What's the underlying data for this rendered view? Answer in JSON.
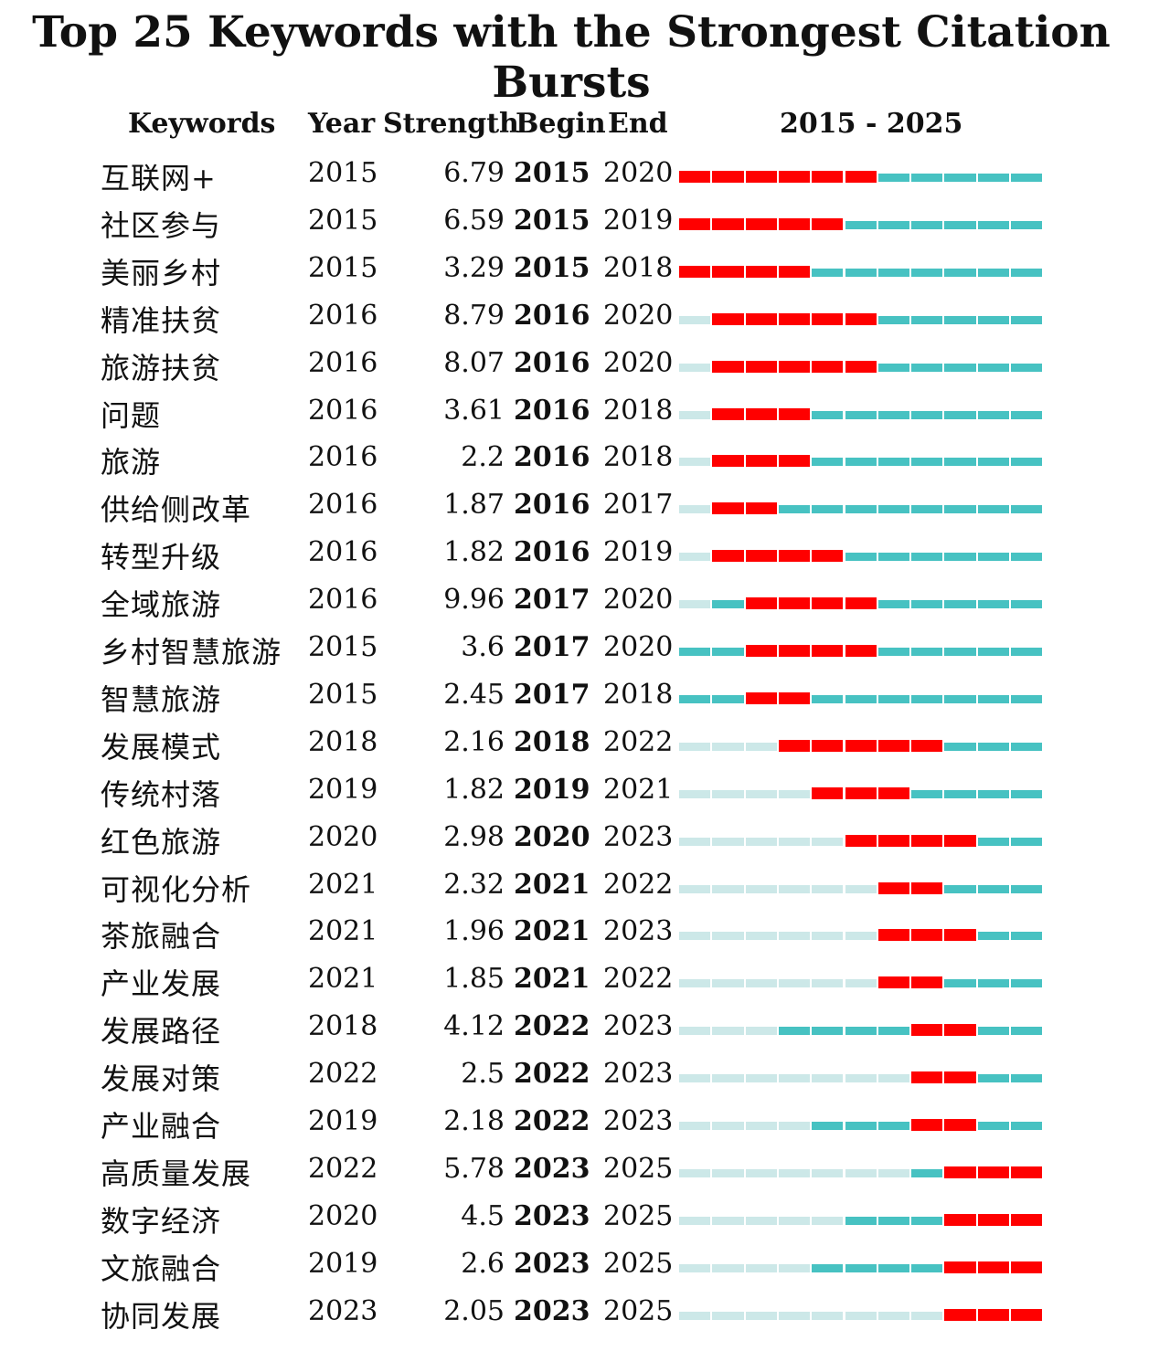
{
  "chart_data": {
    "type": "table",
    "title": "Top 25 Keywords with the Strongest Citation Bursts",
    "headers": {
      "keywords": "Keywords",
      "year": "Year",
      "strength": "Strength",
      "begin": "Begin",
      "end": "End",
      "range": "2015 - 2025"
    },
    "range_start": 2015,
    "range_end": 2025,
    "colors": {
      "burst": "#ff0000",
      "active": "#47c2c2",
      "inactive": "#cce8e8"
    },
    "rows": [
      {
        "keyword": "互联网+",
        "year": 2015,
        "strength": "6.79",
        "begin": 2015,
        "end": 2020
      },
      {
        "keyword": "社区参与",
        "year": 2015,
        "strength": "6.59",
        "begin": 2015,
        "end": 2019
      },
      {
        "keyword": "美丽乡村",
        "year": 2015,
        "strength": "3.29",
        "begin": 2015,
        "end": 2018
      },
      {
        "keyword": "精准扶贫",
        "year": 2016,
        "strength": "8.79",
        "begin": 2016,
        "end": 2020
      },
      {
        "keyword": "旅游扶贫",
        "year": 2016,
        "strength": "8.07",
        "begin": 2016,
        "end": 2020
      },
      {
        "keyword": "问题",
        "year": 2016,
        "strength": "3.61",
        "begin": 2016,
        "end": 2018
      },
      {
        "keyword": "旅游",
        "year": 2016,
        "strength": "2.2",
        "begin": 2016,
        "end": 2018
      },
      {
        "keyword": "供给侧改革",
        "year": 2016,
        "strength": "1.87",
        "begin": 2016,
        "end": 2017
      },
      {
        "keyword": "转型升级",
        "year": 2016,
        "strength": "1.82",
        "begin": 2016,
        "end": 2019
      },
      {
        "keyword": "全域旅游",
        "year": 2016,
        "strength": "9.96",
        "begin": 2017,
        "end": 2020
      },
      {
        "keyword": "乡村智慧旅游",
        "year": 2015,
        "strength": "3.6",
        "begin": 2017,
        "end": 2020
      },
      {
        "keyword": "智慧旅游",
        "year": 2015,
        "strength": "2.45",
        "begin": 2017,
        "end": 2018
      },
      {
        "keyword": "发展模式",
        "year": 2018,
        "strength": "2.16",
        "begin": 2018,
        "end": 2022
      },
      {
        "keyword": "传统村落",
        "year": 2019,
        "strength": "1.82",
        "begin": 2019,
        "end": 2021
      },
      {
        "keyword": "红色旅游",
        "year": 2020,
        "strength": "2.98",
        "begin": 2020,
        "end": 2023
      },
      {
        "keyword": "可视化分析",
        "year": 2021,
        "strength": "2.32",
        "begin": 2021,
        "end": 2022
      },
      {
        "keyword": "茶旅融合",
        "year": 2021,
        "strength": "1.96",
        "begin": 2021,
        "end": 2023
      },
      {
        "keyword": "产业发展",
        "year": 2021,
        "strength": "1.85",
        "begin": 2021,
        "end": 2022
      },
      {
        "keyword": "发展路径",
        "year": 2018,
        "strength": "4.12",
        "begin": 2022,
        "end": 2023
      },
      {
        "keyword": "发展对策",
        "year": 2022,
        "strength": "2.5",
        "begin": 2022,
        "end": 2023
      },
      {
        "keyword": "产业融合",
        "year": 2019,
        "strength": "2.18",
        "begin": 2022,
        "end": 2023
      },
      {
        "keyword": "高质量发展",
        "year": 2022,
        "strength": "5.78",
        "begin": 2023,
        "end": 2025
      },
      {
        "keyword": "数字经济",
        "year": 2020,
        "strength": "4.5",
        "begin": 2023,
        "end": 2025
      },
      {
        "keyword": "文旅融合",
        "year": 2019,
        "strength": "2.6",
        "begin": 2023,
        "end": 2025
      },
      {
        "keyword": "协同发展",
        "year": 2023,
        "strength": "2.05",
        "begin": 2023,
        "end": 2025
      }
    ]
  }
}
